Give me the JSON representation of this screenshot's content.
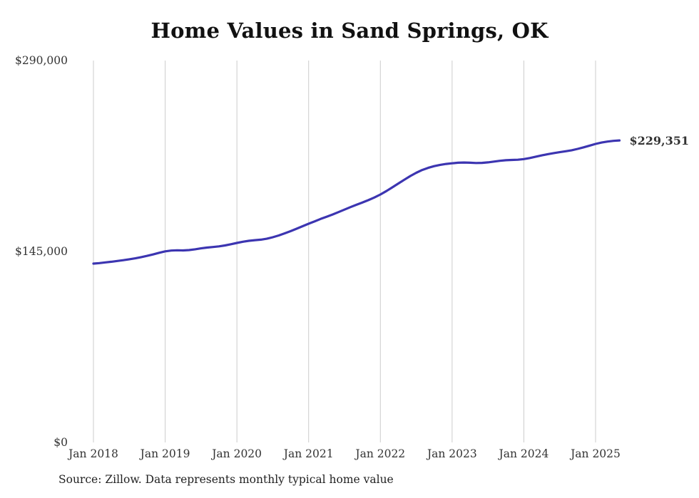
{
  "title": "Home Values in Sand Springs, OK",
  "source_note": "Source: Zillow. Data represents monthly typical home value",
  "end_label": "$229,351",
  "colors": {
    "line": "#3c35b1",
    "grid": "#cccccc",
    "axis_text": "#333333"
  },
  "chart_data": {
    "type": "line",
    "title": "Home Values in Sand Springs, OK",
    "x_unit": "month",
    "x_first": "Jan 2018",
    "x_tick_labels": [
      "Jan 2018",
      "Jan 2019",
      "Jan 2020",
      "Jan 2021",
      "Jan 2022",
      "Jan 2023",
      "Jan 2024",
      "Jan 2025"
    ],
    "y_ticks": [
      0,
      145000,
      290000
    ],
    "y_tick_labels": [
      "$0",
      "$145,000",
      "$290,000"
    ],
    "ylim": [
      0,
      290000
    ],
    "grid": "vertical-only",
    "legend": "none",
    "final_value": 229351,
    "series": [
      {
        "name": "Typical home value",
        "values": [
          135800,
          136200,
          136700,
          137200,
          137800,
          138400,
          139100,
          139800,
          140700,
          141700,
          142800,
          144000,
          145100,
          145700,
          145900,
          145800,
          146100,
          146700,
          147400,
          148000,
          148400,
          148900,
          149600,
          150500,
          151500,
          152400,
          153100,
          153600,
          154000,
          154700,
          155800,
          157200,
          158800,
          160500,
          162300,
          164200,
          166100,
          167900,
          169700,
          171400,
          173100,
          174900,
          176800,
          178700,
          180500,
          182200,
          184000,
          186000,
          188300,
          190900,
          193700,
          196600,
          199500,
          202300,
          204800,
          206900,
          208500,
          209800,
          210800,
          211500,
          212000,
          212400,
          212600,
          212400,
          212200,
          212300,
          212700,
          213300,
          213900,
          214300,
          214500,
          214700,
          215200,
          216000,
          217000,
          218000,
          218900,
          219700,
          220400,
          221100,
          221900,
          222900,
          224100,
          225400,
          226700,
          227700,
          228500,
          229000,
          229351
        ]
      }
    ]
  }
}
